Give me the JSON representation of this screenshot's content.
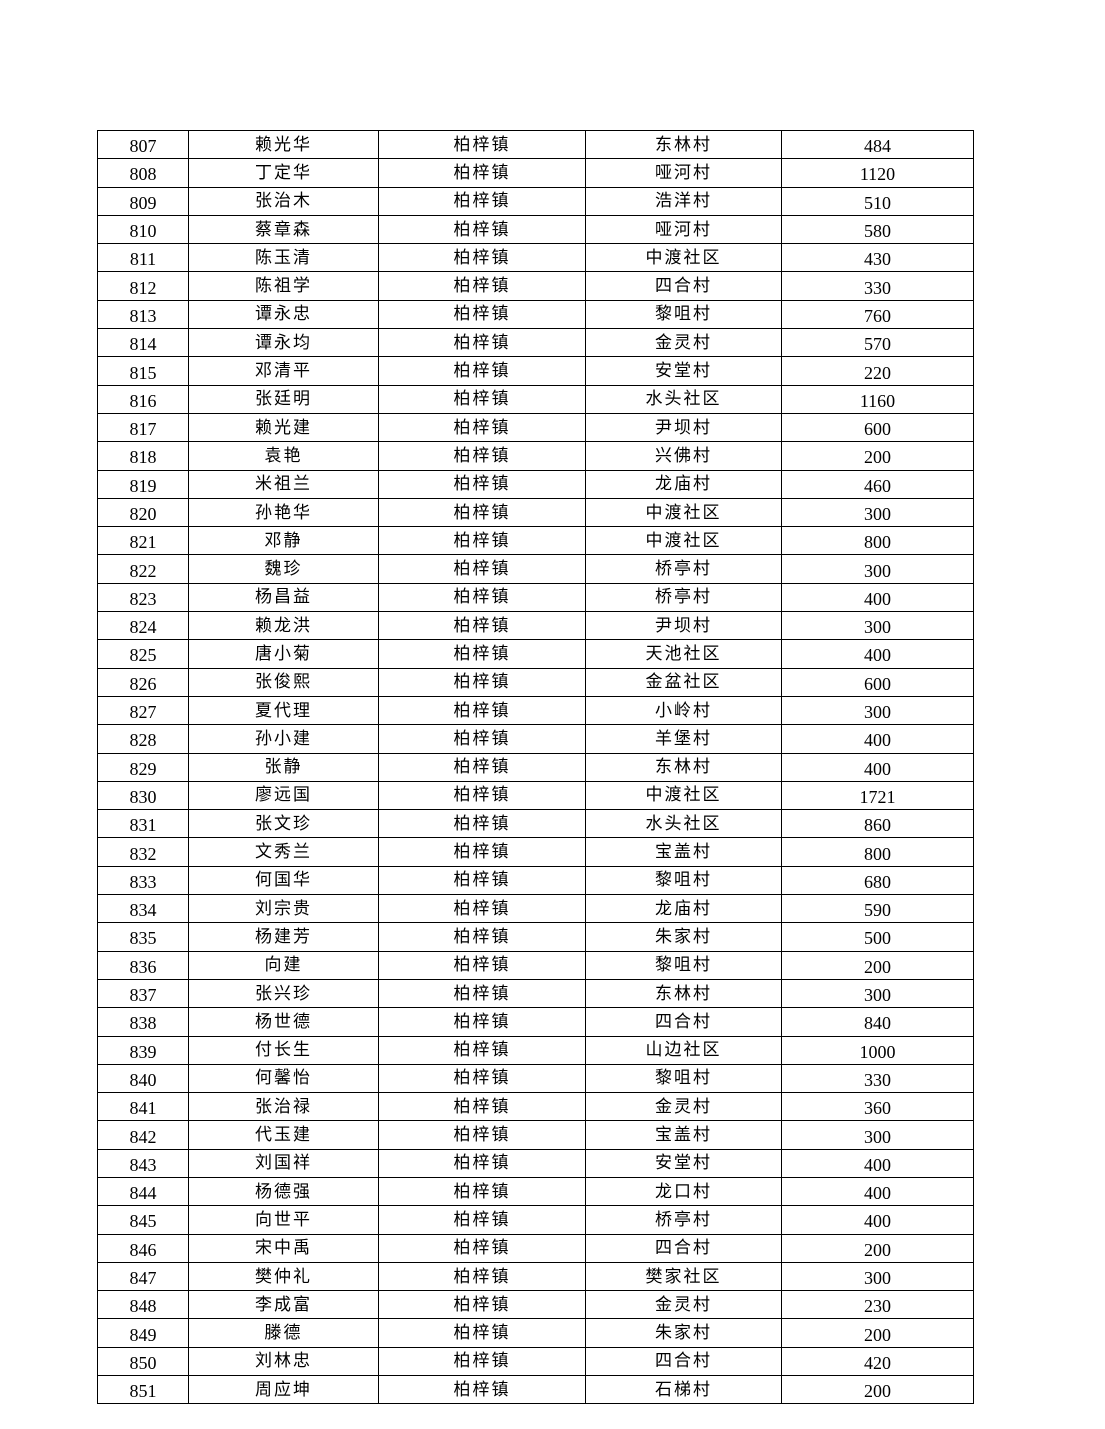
{
  "table": {
    "rows": [
      [
        "807",
        "赖光华",
        "柏梓镇",
        "东林村",
        "484"
      ],
      [
        "808",
        "丁定华",
        "柏梓镇",
        "哑河村",
        "1120"
      ],
      [
        "809",
        "张治木",
        "柏梓镇",
        "浩洋村",
        "510"
      ],
      [
        "810",
        "蔡章森",
        "柏梓镇",
        "哑河村",
        "580"
      ],
      [
        "811",
        "陈玉清",
        "柏梓镇",
        "中渡社区",
        "430"
      ],
      [
        "812",
        "陈祖学",
        "柏梓镇",
        "四合村",
        "330"
      ],
      [
        "813",
        "谭永忠",
        "柏梓镇",
        "黎咀村",
        "760"
      ],
      [
        "814",
        "谭永均",
        "柏梓镇",
        "金灵村",
        "570"
      ],
      [
        "815",
        "邓清平",
        "柏梓镇",
        "安堂村",
        "220"
      ],
      [
        "816",
        "张廷明",
        "柏梓镇",
        "水头社区",
        "1160"
      ],
      [
        "817",
        "赖光建",
        "柏梓镇",
        "尹坝村",
        "600"
      ],
      [
        "818",
        "袁艳",
        "柏梓镇",
        "兴佛村",
        "200"
      ],
      [
        "819",
        "米祖兰",
        "柏梓镇",
        "龙庙村",
        "460"
      ],
      [
        "820",
        "孙艳华",
        "柏梓镇",
        "中渡社区",
        "300"
      ],
      [
        "821",
        "邓静",
        "柏梓镇",
        "中渡社区",
        "800"
      ],
      [
        "822",
        "魏珍",
        "柏梓镇",
        "桥亭村",
        "300"
      ],
      [
        "823",
        "杨昌益",
        "柏梓镇",
        "桥亭村",
        "400"
      ],
      [
        "824",
        "赖龙洪",
        "柏梓镇",
        "尹坝村",
        "300"
      ],
      [
        "825",
        "唐小菊",
        "柏梓镇",
        "天池社区",
        "400"
      ],
      [
        "826",
        "张俊熙",
        "柏梓镇",
        "金盆社区",
        "600"
      ],
      [
        "827",
        "夏代理",
        "柏梓镇",
        "小岭村",
        "300"
      ],
      [
        "828",
        "孙小建",
        "柏梓镇",
        "羊堡村",
        "400"
      ],
      [
        "829",
        "张静",
        "柏梓镇",
        "东林村",
        "400"
      ],
      [
        "830",
        "廖远国",
        "柏梓镇",
        "中渡社区",
        "1721"
      ],
      [
        "831",
        "张文珍",
        "柏梓镇",
        "水头社区",
        "860"
      ],
      [
        "832",
        "文秀兰",
        "柏梓镇",
        "宝盖村",
        "800"
      ],
      [
        "833",
        "何国华",
        "柏梓镇",
        "黎咀村",
        "680"
      ],
      [
        "834",
        "刘宗贵",
        "柏梓镇",
        "龙庙村",
        "590"
      ],
      [
        "835",
        "杨建芳",
        "柏梓镇",
        "朱家村",
        "500"
      ],
      [
        "836",
        "向建",
        "柏梓镇",
        "黎咀村",
        "200"
      ],
      [
        "837",
        "张兴珍",
        "柏梓镇",
        "东林村",
        "300"
      ],
      [
        "838",
        "杨世德",
        "柏梓镇",
        "四合村",
        "840"
      ],
      [
        "839",
        "付长生",
        "柏梓镇",
        "山边社区",
        "1000"
      ],
      [
        "840",
        "何馨怡",
        "柏梓镇",
        "黎咀村",
        "330"
      ],
      [
        "841",
        "张治禄",
        "柏梓镇",
        "金灵村",
        "360"
      ],
      [
        "842",
        "代玉建",
        "柏梓镇",
        "宝盖村",
        "300"
      ],
      [
        "843",
        "刘国祥",
        "柏梓镇",
        "安堂村",
        "400"
      ],
      [
        "844",
        "杨德强",
        "柏梓镇",
        "龙口村",
        "400"
      ],
      [
        "845",
        "向世平",
        "柏梓镇",
        "桥亭村",
        "400"
      ],
      [
        "846",
        "宋中禹",
        "柏梓镇",
        "四合村",
        "200"
      ],
      [
        "847",
        "樊仲礼",
        "柏梓镇",
        "樊家社区",
        "300"
      ],
      [
        "848",
        "李成富",
        "柏梓镇",
        "金灵村",
        "230"
      ],
      [
        "849",
        "滕德",
        "柏梓镇",
        "朱家村",
        "200"
      ],
      [
        "850",
        "刘林忠",
        "柏梓镇",
        "四合村",
        "420"
      ],
      [
        "851",
        "周应坤",
        "柏梓镇",
        "石梯村",
        "200"
      ]
    ]
  }
}
